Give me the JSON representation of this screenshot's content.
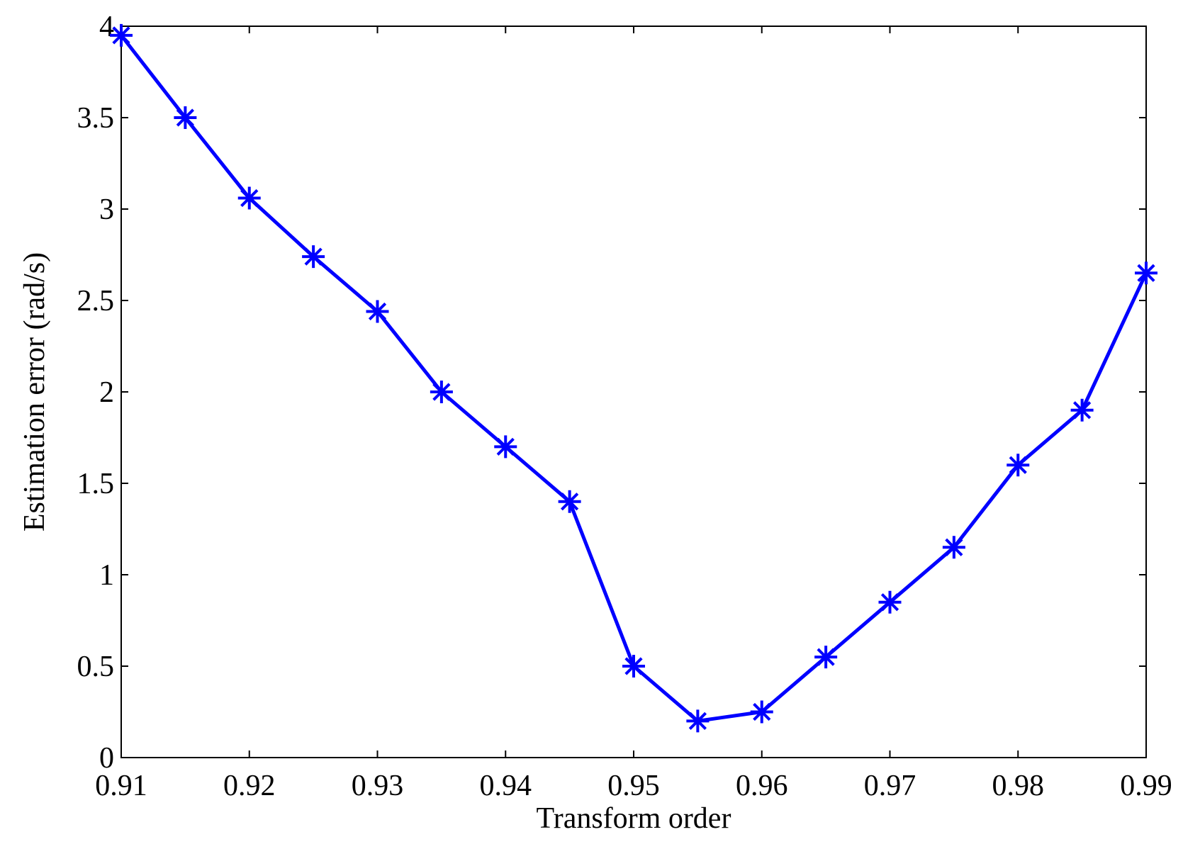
{
  "chart_data": {
    "type": "line",
    "x_label": "Transform order",
    "y_label": "Estimation error (rad/s)",
    "x": [
      0.91,
      0.915,
      0.92,
      0.925,
      0.93,
      0.935,
      0.94,
      0.945,
      0.95,
      0.955,
      0.96,
      0.965,
      0.97,
      0.975,
      0.98,
      0.985,
      0.99
    ],
    "series": [
      {
        "color": "#0000ff",
        "marker": "asterisk",
        "values": [
          3.95,
          3.5,
          3.06,
          2.74,
          2.44,
          2.0,
          1.7,
          1.4,
          0.5,
          0.2,
          0.25,
          0.55,
          0.85,
          1.15,
          1.6,
          1.9,
          2.65
        ]
      }
    ],
    "xlim": [
      0.91,
      0.99
    ],
    "xticks": [
      0.91,
      0.92,
      0.93,
      0.94,
      0.95,
      0.96,
      0.97,
      0.98,
      0.99
    ],
    "ylim": [
      0,
      4
    ],
    "yticks": [
      0,
      0.5,
      1,
      1.5,
      2,
      2.5,
      3,
      3.5,
      4
    ],
    "grid": false
  }
}
